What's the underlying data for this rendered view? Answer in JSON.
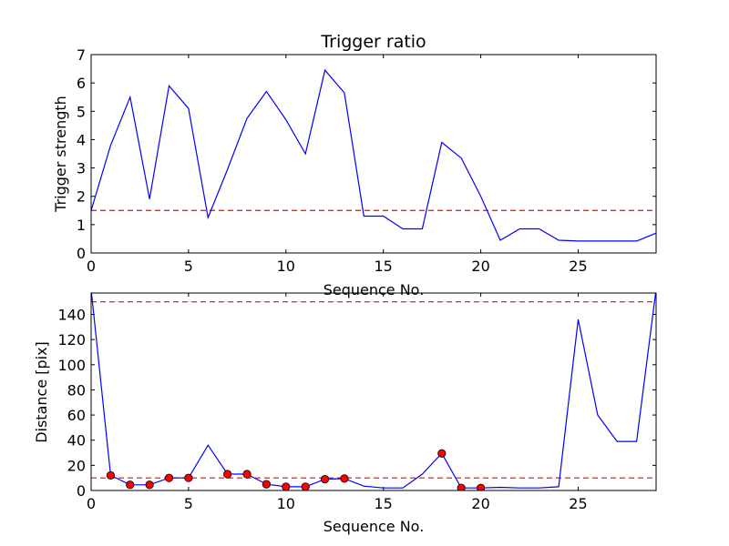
{
  "chart_data": [
    {
      "type": "line",
      "title": "Trigger ratio",
      "xlabel": "Sequence No.",
      "ylabel": "Trigger strength",
      "xlim": [
        0,
        29
      ],
      "ylim": [
        0,
        7
      ],
      "xticks": [
        0,
        5,
        10,
        15,
        20,
        25
      ],
      "yticks": [
        0,
        1,
        2,
        3,
        4,
        5,
        6,
        7
      ],
      "grid": false,
      "line_color": "#0000ff",
      "threshold": {
        "value": 1.5,
        "color": "#ff0000",
        "style": "dashed"
      },
      "x": [
        0,
        1,
        2,
        3,
        4,
        5,
        6,
        7,
        8,
        9,
        10,
        11,
        12,
        13,
        14,
        15,
        16,
        17,
        18,
        19,
        20,
        21,
        22,
        23,
        24,
        25,
        26,
        27,
        28,
        29
      ],
      "values": [
        1.5,
        3.8,
        5.5,
        1.9,
        5.9,
        5.1,
        1.25,
        2.95,
        4.75,
        5.7,
        4.7,
        3.5,
        6.45,
        5.65,
        1.3,
        1.3,
        0.85,
        0.85,
        3.9,
        3.35,
        2.0,
        0.45,
        0.85,
        0.85,
        0.45,
        0.42,
        0.42,
        0.42,
        0.42,
        0.7
      ]
    },
    {
      "type": "line",
      "title": "",
      "xlabel": "Sequence No.",
      "ylabel": "Distance [pix]",
      "xlim": [
        0,
        29
      ],
      "ylim": [
        0,
        157
      ],
      "xticks": [
        0,
        5,
        10,
        15,
        20,
        25
      ],
      "yticks": [
        0,
        20,
        40,
        60,
        80,
        100,
        120,
        140
      ],
      "grid": false,
      "line_color": "#0000ff",
      "marker_color": "#ff0000",
      "thresholds": [
        {
          "value": 150,
          "color": "#ff0000",
          "style": "dashed"
        },
        {
          "value": 10,
          "color": "#ff0000",
          "style": "dashed"
        }
      ],
      "x": [
        0,
        1,
        2,
        3,
        4,
        5,
        6,
        7,
        8,
        9,
        10,
        11,
        12,
        13,
        14,
        15,
        16,
        17,
        18,
        19,
        20,
        21,
        22,
        23,
        24,
        25,
        26,
        27,
        28,
        29
      ],
      "values": [
        160,
        12,
        4.5,
        4.5,
        10,
        10,
        36,
        13,
        13,
        5,
        3,
        3,
        9,
        9.5,
        3.5,
        2,
        2,
        13,
        29.5,
        2,
        2,
        2.5,
        2,
        2,
        3,
        136,
        60,
        39,
        39,
        160
      ],
      "markers_x": [
        1,
        2,
        3,
        4,
        5,
        7,
        8,
        9,
        10,
        11,
        12,
        13,
        18,
        19,
        20
      ],
      "markers_y": [
        12,
        4.5,
        4.5,
        10,
        10,
        13,
        13,
        5,
        3,
        3,
        9,
        9.5,
        29.5,
        2,
        2
      ]
    }
  ]
}
